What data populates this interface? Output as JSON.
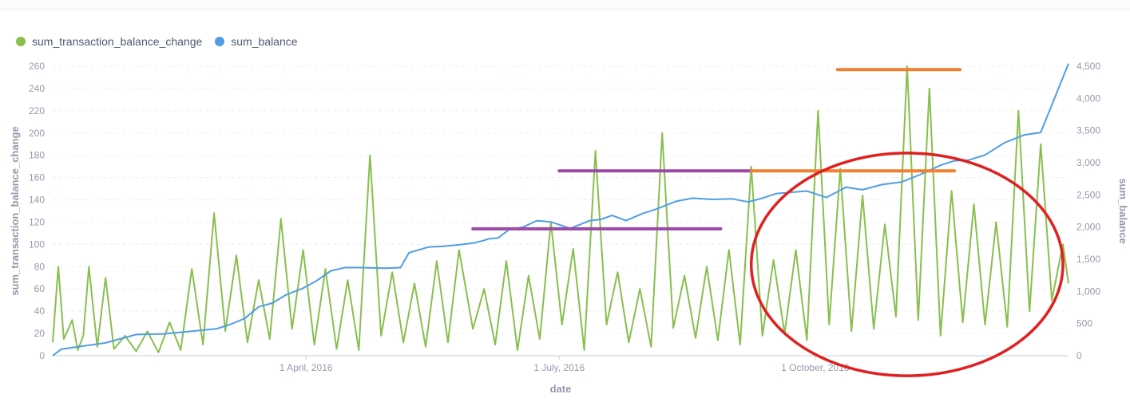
{
  "legend": [
    {
      "name": "sum_transaction_balance_change",
      "color": "#88bf4d"
    },
    {
      "name": "sum_balance",
      "color": "#509ee3"
    }
  ],
  "chart_data": {
    "type": "line",
    "xlabel": "date",
    "ylabel_left": "sum_transaction_balance_change",
    "ylabel_right": "sum_balance",
    "x_range": [
      "2016-01-01",
      "2016-12-31"
    ],
    "x_ticks": [
      {
        "date": "2016-04-01",
        "label": "1 April, 2016"
      },
      {
        "date": "2016-07-01",
        "label": "1 July, 2016"
      },
      {
        "date": "2016-10-01",
        "label": "1 October, 2016"
      }
    ],
    "ylim_left": [
      0,
      260
    ],
    "y_ticks_left": [
      "0",
      "20",
      "40",
      "60",
      "80",
      "100",
      "120",
      "140",
      "160",
      "180",
      "200",
      "220",
      "240",
      "260"
    ],
    "ylim_right": [
      0,
      4500
    ],
    "y_ticks_right": [
      "0",
      "500",
      "1,000",
      "1,500",
      "2,000",
      "2,500",
      "3,000",
      "3,500",
      "4,000",
      "4,500"
    ],
    "grid": "horizontal",
    "legend_position": "top-left",
    "series": [
      {
        "name": "sum_balance",
        "axis": "right",
        "color": "#509ee3",
        "points": [
          [
            "2016-01-01",
            0
          ],
          [
            "2016-01-04",
            100
          ],
          [
            "2016-01-10",
            140
          ],
          [
            "2016-01-20",
            200
          ],
          [
            "2016-01-31",
            330
          ],
          [
            "2016-02-10",
            340
          ],
          [
            "2016-02-20",
            380
          ],
          [
            "2016-02-29",
            420
          ],
          [
            "2016-03-05",
            490
          ],
          [
            "2016-03-10",
            580
          ],
          [
            "2016-03-15",
            760
          ],
          [
            "2016-03-20",
            820
          ],
          [
            "2016-03-25",
            950
          ],
          [
            "2016-03-31",
            1050
          ],
          [
            "2016-04-05",
            1170
          ],
          [
            "2016-04-10",
            1320
          ],
          [
            "2016-04-15",
            1370
          ],
          [
            "2016-04-20",
            1370
          ],
          [
            "2016-04-30",
            1360
          ],
          [
            "2016-05-05",
            1370
          ],
          [
            "2016-05-08",
            1600
          ],
          [
            "2016-05-15",
            1690
          ],
          [
            "2016-05-20",
            1700
          ],
          [
            "2016-05-25",
            1720
          ],
          [
            "2016-05-31",
            1750
          ],
          [
            "2016-06-03",
            1780
          ],
          [
            "2016-06-06",
            1820
          ],
          [
            "2016-06-09",
            1830
          ],
          [
            "2016-06-13",
            1960
          ],
          [
            "2016-06-18",
            2000
          ],
          [
            "2016-06-23",
            2100
          ],
          [
            "2016-06-28",
            2080
          ],
          [
            "2016-07-05",
            1980
          ],
          [
            "2016-07-12",
            2100
          ],
          [
            "2016-07-16",
            2120
          ],
          [
            "2016-07-20",
            2180
          ],
          [
            "2016-07-25",
            2100
          ],
          [
            "2016-07-31",
            2210
          ],
          [
            "2016-08-05",
            2280
          ],
          [
            "2016-08-12",
            2400
          ],
          [
            "2016-08-18",
            2450
          ],
          [
            "2016-08-25",
            2430
          ],
          [
            "2016-09-01",
            2440
          ],
          [
            "2016-09-07",
            2390
          ],
          [
            "2016-09-12",
            2450
          ],
          [
            "2016-09-17",
            2520
          ],
          [
            "2016-09-22",
            2540
          ],
          [
            "2016-09-28",
            2560
          ],
          [
            "2016-10-05",
            2460
          ],
          [
            "2016-10-12",
            2620
          ],
          [
            "2016-10-18",
            2580
          ],
          [
            "2016-10-25",
            2660
          ],
          [
            "2016-11-01",
            2700
          ],
          [
            "2016-11-08",
            2820
          ],
          [
            "2016-11-15",
            2960
          ],
          [
            "2016-11-20",
            3030
          ],
          [
            "2016-11-25",
            3040
          ],
          [
            "2016-12-01",
            3120
          ],
          [
            "2016-12-08",
            3310
          ],
          [
            "2016-12-15",
            3430
          ],
          [
            "2016-12-21",
            3470
          ],
          [
            "2016-12-31",
            4540
          ]
        ]
      },
      {
        "name": "sum_transaction_balance_change",
        "axis": "left",
        "color": "#88bf4d",
        "points": [
          [
            "2016-01-01",
            12
          ],
          [
            "2016-01-03",
            80
          ],
          [
            "2016-01-05",
            15
          ],
          [
            "2016-01-08",
            32
          ],
          [
            "2016-01-10",
            5
          ],
          [
            "2016-01-12",
            18
          ],
          [
            "2016-01-14",
            80
          ],
          [
            "2016-01-17",
            8
          ],
          [
            "2016-01-20",
            70
          ],
          [
            "2016-01-23",
            6
          ],
          [
            "2016-01-27",
            18
          ],
          [
            "2016-01-31",
            4
          ],
          [
            "2016-02-04",
            22
          ],
          [
            "2016-02-08",
            3
          ],
          [
            "2016-02-12",
            30
          ],
          [
            "2016-02-16",
            5
          ],
          [
            "2016-02-20",
            78
          ],
          [
            "2016-02-24",
            10
          ],
          [
            "2016-02-28",
            128
          ],
          [
            "2016-03-03",
            22
          ],
          [
            "2016-03-07",
            90
          ],
          [
            "2016-03-11",
            12
          ],
          [
            "2016-03-15",
            68
          ],
          [
            "2016-03-19",
            15
          ],
          [
            "2016-03-23",
            123
          ],
          [
            "2016-03-27",
            24
          ],
          [
            "2016-03-31",
            95
          ],
          [
            "2016-04-04",
            10
          ],
          [
            "2016-04-08",
            78
          ],
          [
            "2016-04-12",
            6
          ],
          [
            "2016-04-16",
            68
          ],
          [
            "2016-04-20",
            5
          ],
          [
            "2016-04-24",
            180
          ],
          [
            "2016-04-28",
            18
          ],
          [
            "2016-05-02",
            75
          ],
          [
            "2016-05-06",
            12
          ],
          [
            "2016-05-10",
            65
          ],
          [
            "2016-05-14",
            8
          ],
          [
            "2016-05-18",
            85
          ],
          [
            "2016-05-22",
            12
          ],
          [
            "2016-05-26",
            95
          ],
          [
            "2016-05-31",
            24
          ],
          [
            "2016-06-04",
            60
          ],
          [
            "2016-06-08",
            10
          ],
          [
            "2016-06-12",
            85
          ],
          [
            "2016-06-16",
            5
          ],
          [
            "2016-06-20",
            72
          ],
          [
            "2016-06-24",
            15
          ],
          [
            "2016-06-28",
            120
          ],
          [
            "2016-07-02",
            28
          ],
          [
            "2016-07-06",
            96
          ],
          [
            "2016-07-10",
            5
          ],
          [
            "2016-07-14",
            184
          ],
          [
            "2016-07-18",
            28
          ],
          [
            "2016-07-22",
            75
          ],
          [
            "2016-07-26",
            12
          ],
          [
            "2016-07-30",
            60
          ],
          [
            "2016-08-03",
            8
          ],
          [
            "2016-08-07",
            200
          ],
          [
            "2016-08-11",
            25
          ],
          [
            "2016-08-15",
            72
          ],
          [
            "2016-08-19",
            16
          ],
          [
            "2016-08-23",
            80
          ],
          [
            "2016-08-27",
            14
          ],
          [
            "2016-08-31",
            95
          ],
          [
            "2016-09-04",
            10
          ],
          [
            "2016-09-08",
            170
          ],
          [
            "2016-09-12",
            18
          ],
          [
            "2016-09-16",
            86
          ],
          [
            "2016-09-20",
            20
          ],
          [
            "2016-09-24",
            95
          ],
          [
            "2016-09-28",
            14
          ],
          [
            "2016-10-02",
            220
          ],
          [
            "2016-10-06",
            28
          ],
          [
            "2016-10-10",
            168
          ],
          [
            "2016-10-14",
            22
          ],
          [
            "2016-10-18",
            144
          ],
          [
            "2016-10-22",
            24
          ],
          [
            "2016-10-26",
            118
          ],
          [
            "2016-10-30",
            35
          ],
          [
            "2016-11-03",
            260
          ],
          [
            "2016-11-07",
            32
          ],
          [
            "2016-11-11",
            240
          ],
          [
            "2016-11-15",
            18
          ],
          [
            "2016-11-19",
            148
          ],
          [
            "2016-11-23",
            30
          ],
          [
            "2016-11-27",
            136
          ],
          [
            "2016-12-01",
            28
          ],
          [
            "2016-12-05",
            120
          ],
          [
            "2016-12-09",
            26
          ],
          [
            "2016-12-13",
            220
          ],
          [
            "2016-12-17",
            40
          ],
          [
            "2016-12-21",
            190
          ],
          [
            "2016-12-25",
            50
          ],
          [
            "2016-12-29",
            100
          ],
          [
            "2016-12-31",
            65
          ]
        ]
      }
    ],
    "annotations": [
      {
        "shape": "hline",
        "color": "#9b4aa8",
        "axis": "left",
        "y": 114,
        "x_range": [
          "2016-05-31",
          "2016-08-28"
        ]
      },
      {
        "shape": "hline",
        "color": "#9b4aa8",
        "axis": "left",
        "y": 166,
        "x_range": [
          "2016-07-01",
          "2016-09-08"
        ]
      },
      {
        "shape": "hline",
        "color": "#f08030",
        "axis": "left",
        "y": 257,
        "x_range": [
          "2016-10-09",
          "2016-11-22"
        ]
      },
      {
        "shape": "hline",
        "color": "#f08030",
        "axis": "left",
        "y": 166,
        "x_range": [
          "2016-09-08",
          "2016-11-20"
        ]
      },
      {
        "shape": "ellipse",
        "color": "#e02020",
        "axis": "left",
        "center": [
          "2016-11-03",
          82
        ],
        "x_radius_days": 56,
        "y_radius": 100
      }
    ]
  }
}
